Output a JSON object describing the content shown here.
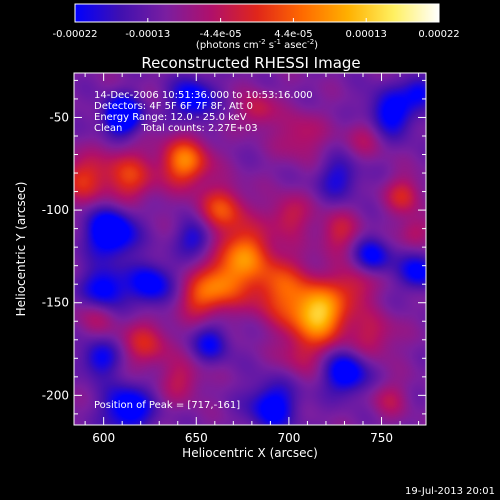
{
  "colorbar": {
    "stops": [
      "#0000ff",
      "#4010b0",
      "#7a1ea0",
      "#b0106a",
      "#e0261a",
      "#ff6a00",
      "#ffb000",
      "#fff060",
      "#ffffff"
    ],
    "ticks": [
      "-0.00022",
      "-0.00013",
      "-4.4e-05",
      "4.4e-05",
      "0.00013",
      "0.00022"
    ],
    "units_main": "(photons cm",
    "units_exp1": "-2",
    "units_mid": " s",
    "units_exp2": "-1",
    "units_tail": " asec",
    "units_exp3": "-2",
    "units_close": ")"
  },
  "plot": {
    "title": "Reconstructed RHESSI Image",
    "info_lines": [
      "14-Dec-2006 10:51:36.000 to 10:53:16.000",
      "Detectors: 4F 5F 6F 7F 8F, Att 0",
      "Energy Range: 12.0 - 25.0 keV",
      "Clean      Total counts: 2.27E+03"
    ],
    "peak_label": "Position of Peak = [717,-161]",
    "footer_date": "19-Jul-2013 20:01"
  },
  "chart_data": {
    "type": "heatmap",
    "title": "Reconstructed RHESSI Image",
    "xlabel": "Heliocentric X (arcsec)",
    "ylabel": "Heliocentric Y (arcsec)",
    "xlim": [
      584,
      774
    ],
    "ylim": [
      -216,
      -26
    ],
    "xticks": [
      600,
      650,
      700,
      750
    ],
    "yticks": [
      -50,
      -100,
      -150,
      -200
    ],
    "colorbar_range": [
      -0.00022,
      0.00022
    ],
    "peak": {
      "x": 717,
      "y": -161
    },
    "blobs": [
      {
        "x": 716,
        "y": -156,
        "a": 1.0,
        "s": 11
      },
      {
        "x": 694,
        "y": -142,
        "a": 0.55,
        "s": 12
      },
      {
        "x": 676,
        "y": -123,
        "a": 0.65,
        "s": 10
      },
      {
        "x": 664,
        "y": -139,
        "a": 0.6,
        "s": 9
      },
      {
        "x": 652,
        "y": -148,
        "a": 0.45,
        "s": 8
      },
      {
        "x": 644,
        "y": -74,
        "a": 0.75,
        "s": 9
      },
      {
        "x": 664,
        "y": -100,
        "a": 0.55,
        "s": 9
      },
      {
        "x": 613,
        "y": -82,
        "a": 0.5,
        "s": 10
      },
      {
        "x": 588,
        "y": -83,
        "a": 0.45,
        "s": 9
      },
      {
        "x": 700,
        "y": -103,
        "a": 0.35,
        "s": 8
      },
      {
        "x": 727,
        "y": -112,
        "a": 0.35,
        "s": 8
      },
      {
        "x": 736,
        "y": -140,
        "a": 0.35,
        "s": 8
      },
      {
        "x": 762,
        "y": -92,
        "a": 0.4,
        "s": 7
      },
      {
        "x": 768,
        "y": -112,
        "a": 0.3,
        "s": 6
      },
      {
        "x": 746,
        "y": -168,
        "a": 0.3,
        "s": 9
      },
      {
        "x": 706,
        "y": -178,
        "a": 0.25,
        "s": 8
      },
      {
        "x": 623,
        "y": -172,
        "a": 0.4,
        "s": 9
      },
      {
        "x": 642,
        "y": -192,
        "a": 0.3,
        "s": 8
      },
      {
        "x": 596,
        "y": -156,
        "a": 0.25,
        "s": 8
      },
      {
        "x": 706,
        "y": -60,
        "a": 0.3,
        "s": 9
      },
      {
        "x": 742,
        "y": -60,
        "a": 0.25,
        "s": 8
      },
      {
        "x": 683,
        "y": -46,
        "a": 0.35,
        "s": 7
      },
      {
        "x": 754,
        "y": -202,
        "a": 0.25,
        "s": 7
      },
      {
        "x": 610,
        "y": -49,
        "a": -0.8,
        "s": 7
      },
      {
        "x": 648,
        "y": -40,
        "a": -0.55,
        "s": 8
      },
      {
        "x": 755,
        "y": -48,
        "a": -0.55,
        "s": 9
      },
      {
        "x": 771,
        "y": -36,
        "a": -0.45,
        "s": 6
      },
      {
        "x": 604,
        "y": -112,
        "a": -0.75,
        "s": 9
      },
      {
        "x": 600,
        "y": -143,
        "a": -0.6,
        "s": 8
      },
      {
        "x": 625,
        "y": -140,
        "a": -0.55,
        "s": 8
      },
      {
        "x": 613,
        "y": -207,
        "a": -0.6,
        "s": 9
      },
      {
        "x": 691,
        "y": -206,
        "a": -0.55,
        "s": 9
      },
      {
        "x": 731,
        "y": -188,
        "a": -0.6,
        "s": 8
      },
      {
        "x": 770,
        "y": -133,
        "a": -0.5,
        "s": 7
      },
      {
        "x": 745,
        "y": -125,
        "a": -0.5,
        "s": 7
      },
      {
        "x": 727,
        "y": -83,
        "a": -0.35,
        "s": 8
      },
      {
        "x": 650,
        "y": -115,
        "a": -0.4,
        "s": 7
      },
      {
        "x": 598,
        "y": -180,
        "a": -0.45,
        "s": 7
      },
      {
        "x": 658,
        "y": -172,
        "a": -0.4,
        "s": 7
      }
    ]
  }
}
